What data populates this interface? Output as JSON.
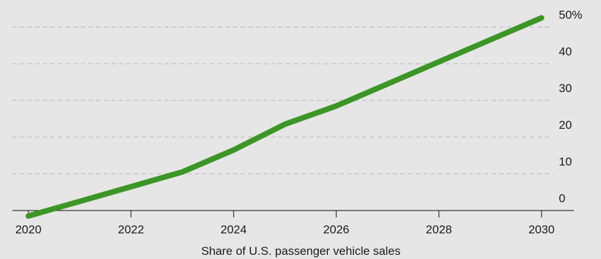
{
  "chart_data": {
    "type": "line",
    "title": "",
    "xlabel": "Share of U.S. passenger vehicle sales",
    "ylabel": "",
    "xlim": [
      2020,
      2030
    ],
    "ylim": [
      0,
      50
    ],
    "x_ticks": [
      {
        "value": 2020,
        "label": "2020"
      },
      {
        "value": 2022,
        "label": "2022"
      },
      {
        "value": 2024,
        "label": "2024"
      },
      {
        "value": 2026,
        "label": "2026"
      },
      {
        "value": 2028,
        "label": "2028"
      },
      {
        "value": 2030,
        "label": "2030"
      }
    ],
    "y_ticks": [
      {
        "value": 0,
        "label": "0"
      },
      {
        "value": 10,
        "label": "10"
      },
      {
        "value": 20,
        "label": "20"
      },
      {
        "value": 30,
        "label": "30"
      },
      {
        "value": 40,
        "label": "40"
      },
      {
        "value": 50,
        "label": "50%"
      }
    ],
    "grid": "horizontal-dashed",
    "y_axis_side": "right",
    "series": [
      {
        "color": "#3b9626",
        "x": [
          2020,
          2021,
          2022,
          2023,
          2024,
          2025,
          2026,
          2027,
          2028,
          2029,
          2030
        ],
        "y": [
          -1.5,
          2.5,
          6.5,
          10.5,
          16.5,
          23.5,
          28.5,
          34.5,
          40.5,
          46.5,
          52.5
        ]
      }
    ]
  },
  "colors": {
    "background": "#e6e6e6",
    "grid": "#b5b5b5",
    "axis": "#333333",
    "line": "#3b9626"
  }
}
